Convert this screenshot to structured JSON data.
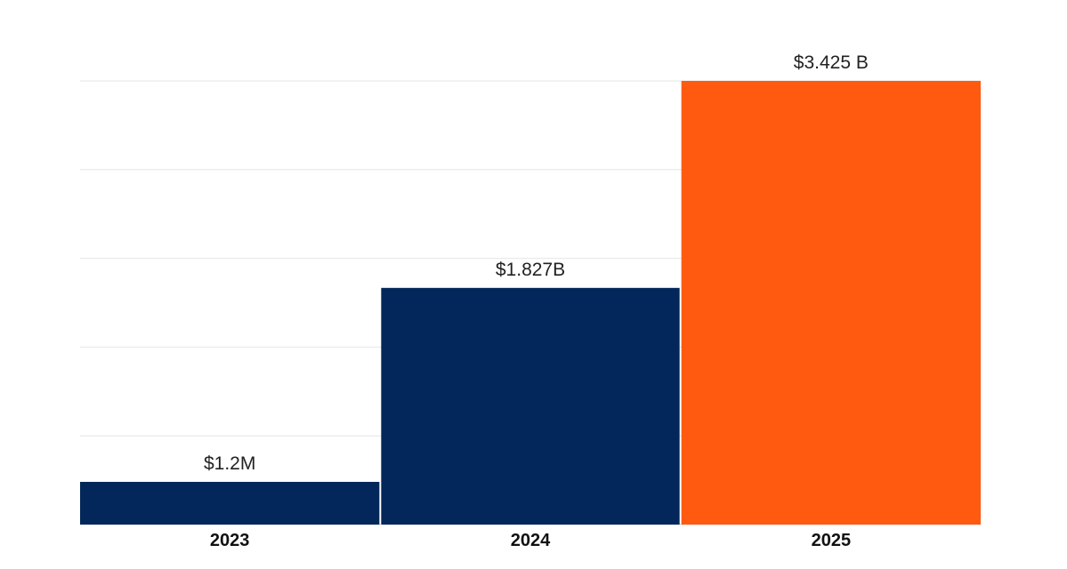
{
  "chart_data": {
    "type": "bar",
    "categories": [
      "2023",
      "2024",
      "2025"
    ],
    "values": [
      0.0012,
      1.827,
      3.425
    ],
    "value_unit": "USD billions",
    "data_labels": [
      "$1.2M",
      "$1.827B",
      "$3.425 B"
    ],
    "colors": [
      "#03275a",
      "#03275a",
      "#ff5a10"
    ],
    "ylim": [
      0,
      3.425
    ],
    "y_gridlines": 5,
    "title": "",
    "xlabel": "",
    "ylabel": "",
    "grid": true,
    "legend": "none"
  }
}
